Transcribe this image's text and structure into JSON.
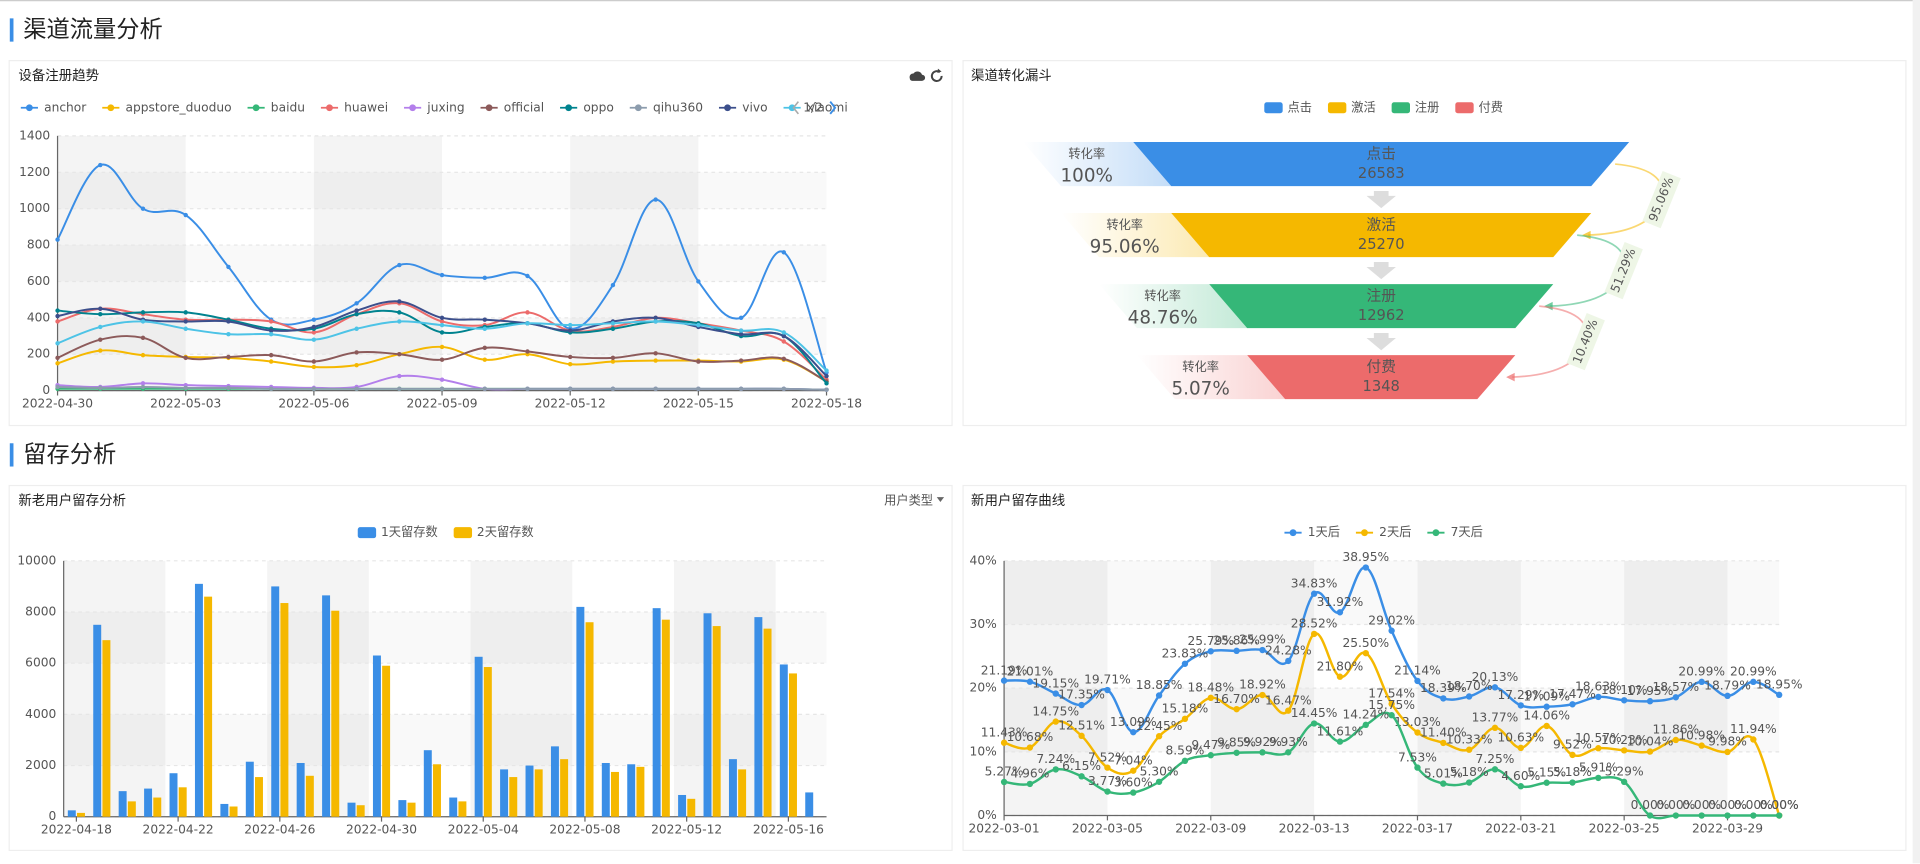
{
  "sections": [
    "渠道流量分析",
    "留存分析"
  ],
  "chart_data": [
    {
      "type": "line",
      "title": "设备注册趋势",
      "legend_page": "1/2",
      "smooth": true,
      "categories": [
        "2022-04-30",
        null,
        null,
        "2022-05-03",
        null,
        null,
        "2022-05-06",
        null,
        null,
        "2022-05-09",
        null,
        null,
        "2022-05-12",
        null,
        null,
        "2022-05-15",
        null,
        null,
        "2022-05-18"
      ],
      "ylim": [
        0,
        1400
      ],
      "yticks": [
        0,
        200,
        400,
        600,
        800,
        1000,
        1200,
        1400
      ],
      "series": [
        {
          "name": "anchor",
          "color": "#3a8ee6",
          "values": [
            830,
            1240,
            1000,
            965,
            680,
            390,
            390,
            480,
            690,
            635,
            620,
            630,
            340,
            580,
            1050,
            600,
            400,
            760,
            100
          ]
        },
        {
          "name": "appstore_duoduo",
          "color": "#f5b800",
          "values": [
            150,
            220,
            195,
            185,
            180,
            160,
            130,
            140,
            200,
            240,
            170,
            200,
            145,
            160,
            165,
            165,
            160,
            170,
            50
          ]
        },
        {
          "name": "baidu",
          "color": "#35b778",
          "values": [
            10,
            10,
            10,
            10,
            10,
            10,
            10,
            10,
            10,
            10,
            10,
            10,
            10,
            10,
            10,
            10,
            10,
            10,
            5
          ]
        },
        {
          "name": "huawei",
          "color": "#ec6b6b",
          "values": [
            380,
            450,
            420,
            390,
            390,
            380,
            320,
            420,
            480,
            380,
            360,
            430,
            330,
            350,
            400,
            370,
            330,
            270,
            60
          ]
        },
        {
          "name": "juxing",
          "color": "#b37feb",
          "values": [
            30,
            20,
            40,
            30,
            25,
            20,
            15,
            20,
            80,
            60,
            10,
            10,
            10,
            10,
            10,
            10,
            10,
            10,
            5
          ]
        },
        {
          "name": "official",
          "color": "#8c5a5a",
          "values": [
            180,
            280,
            290,
            180,
            185,
            195,
            160,
            210,
            200,
            170,
            235,
            215,
            185,
            180,
            205,
            160,
            165,
            175,
            50
          ]
        },
        {
          "name": "oppo",
          "color": "#00838f",
          "values": [
            440,
            420,
            430,
            430,
            390,
            340,
            340,
            420,
            430,
            320,
            350,
            370,
            320,
            340,
            380,
            370,
            300,
            300,
            40
          ]
        },
        {
          "name": "qihu360",
          "color": "#8c9cad",
          "values": [
            20,
            15,
            20,
            15,
            15,
            10,
            10,
            10,
            10,
            10,
            10,
            10,
            10,
            10,
            10,
            10,
            10,
            10,
            5
          ]
        },
        {
          "name": "vivo",
          "color": "#3c4f8c",
          "values": [
            410,
            450,
            390,
            380,
            380,
            330,
            350,
            440,
            490,
            400,
            390,
            370,
            330,
            380,
            400,
            350,
            310,
            300,
            80
          ]
        },
        {
          "name": "xiaomi",
          "color": "#4dc3e6",
          "values": [
            260,
            350,
            380,
            340,
            310,
            310,
            280,
            340,
            380,
            360,
            340,
            370,
            360,
            370,
            380,
            360,
            330,
            320,
            110
          ]
        }
      ]
    },
    {
      "type": "funnel",
      "title": "渠道转化漏斗",
      "rate_label": "转化率",
      "categories": [
        "点击",
        "激活",
        "注册",
        "付费"
      ],
      "colors": [
        "#3a8ee6",
        "#f5b800",
        "#35b778",
        "#ec6b6b"
      ],
      "values": [
        26583,
        25270,
        12962,
        1348
      ],
      "conversion_rates": [
        100,
        95.06,
        48.76,
        5.07
      ],
      "conversion_rate_labels": [
        "100%",
        "95.06%",
        "48.76%",
        "5.07%"
      ],
      "step_rates": [
        95.06,
        51.29,
        10.4
      ],
      "step_rate_labels": [
        "95.06%",
        "51.29%",
        "10.40%"
      ]
    },
    {
      "type": "bar",
      "title": "新老用户留存分析",
      "filter_label": "用户类型",
      "categories": [
        "2022-04-18",
        null,
        null,
        null,
        "2022-04-22",
        null,
        null,
        null,
        "2022-04-26",
        null,
        null,
        null,
        "2022-04-30",
        null,
        null,
        null,
        "2022-05-04",
        null,
        null,
        null,
        "2022-05-08",
        null,
        null,
        null,
        "2022-05-12",
        null,
        null,
        null,
        "2022-05-16",
        null
      ],
      "ylim": [
        0,
        10000
      ],
      "yticks": [
        0,
        2000,
        4000,
        6000,
        8000,
        10000
      ],
      "series": [
        {
          "name": "1天留存数",
          "color": "#3a8ee6",
          "values": [
            250,
            7500,
            1000,
            1100,
            1700,
            9100,
            500,
            2150,
            9000,
            2100,
            8650,
            550,
            6300,
            650,
            2600,
            750,
            6250,
            1850,
            2000,
            2750,
            8200,
            2100,
            2050,
            8150,
            850,
            7950,
            2250,
            7800,
            5950,
            950
          ]
        },
        {
          "name": "2天留存数",
          "color": "#f5b800",
          "values": [
            150,
            6900,
            600,
            750,
            1150,
            8600,
            400,
            1550,
            8350,
            1600,
            8050,
            450,
            5900,
            550,
            2050,
            600,
            5850,
            1550,
            1850,
            2250,
            7600,
            1750,
            1950,
            7700,
            700,
            7450,
            1850,
            7350,
            5600,
            null
          ]
        }
      ]
    },
    {
      "type": "line",
      "title": "新用户留存曲线",
      "smooth": true,
      "categories": [
        "2022-03-01",
        null,
        null,
        null,
        "2022-03-05",
        null,
        null,
        null,
        "2022-03-09",
        null,
        null,
        null,
        "2022-03-13",
        null,
        null,
        null,
        "2022-03-17",
        null,
        null,
        null,
        "2022-03-21",
        null,
        null,
        null,
        "2022-03-25",
        null,
        null,
        null,
        "2022-03-29",
        null,
        null
      ],
      "ylim": [
        0,
        40
      ],
      "yticks": [
        {
          "value": 0,
          "label": "0%"
        },
        {
          "value": 10,
          "label": "10%"
        },
        {
          "value": 20,
          "label": "20%"
        },
        {
          "value": 30,
          "label": "30%"
        },
        {
          "value": 40,
          "label": "40%"
        }
      ],
      "series": [
        {
          "name": "1天后",
          "color": "#3a8ee6",
          "values": [
            21.19,
            21.01,
            19.15,
            17.35,
            19.71,
            13.09,
            18.85,
            23.83,
            25.79,
            25.86,
            25.99,
            24.28,
            34.83,
            31.92,
            38.95,
            29.02,
            21.14,
            18.39,
            18.7,
            20.13,
            17.29,
            17.09,
            17.47,
            18.63,
            18.1,
            17.95,
            18.57,
            20.99,
            18.79,
            20.99,
            18.95
          ],
          "value_labels": [
            "21.19%",
            "21.01%",
            "19.15%",
            "17.35%",
            "19.71%",
            "13.09%",
            "18.85%",
            "23.83%",
            "25.79%",
            "25.86%",
            "25.99%",
            "24.28%",
            "34.83%",
            "31.92%",
            "38.95%",
            "29.02%",
            "21.14%",
            "18.39%",
            "18.70%",
            "20.13%",
            "17.29%",
            "17.09%",
            "17.47%",
            "18.63%",
            "18.10%",
            "17.95%",
            "18.57%",
            "20.99%",
            "18.79%",
            "20.99%",
            "18.95%"
          ]
        },
        {
          "name": "2天后",
          "color": "#f5b800",
          "values": [
            11.43,
            10.68,
            14.75,
            12.51,
            7.52,
            7.04,
            12.45,
            15.18,
            18.48,
            16.7,
            18.92,
            16.47,
            28.52,
            21.8,
            25.5,
            17.54,
            13.03,
            11.4,
            10.33,
            13.77,
            10.63,
            14.06,
            9.52,
            10.57,
            10.23,
            10.04,
            11.86,
            10.98,
            9.98,
            11.94,
            0
          ],
          "value_labels": [
            "11.43%",
            "10.68%",
            "14.75%",
            "12.51%",
            "7.52%",
            "7.04%",
            "12.45%",
            "15.18%",
            "18.48%",
            "16.70%",
            "18.92%",
            "16.47%",
            "28.52%",
            "21.80%",
            "25.50%",
            "17.54%",
            "13.03%",
            "11.40%",
            "10.33%",
            "13.77%",
            "10.63%",
            "14.06%",
            "9.52%",
            "10.57%",
            "10.23%",
            "10.04%",
            "11.86%",
            "10.98%",
            "9.98%",
            "11.94%",
            "0.00%"
          ]
        },
        {
          "name": "7天后",
          "color": "#35b778",
          "values": [
            5.27,
            4.96,
            7.24,
            6.15,
            3.77,
            3.6,
            5.3,
            8.59,
            9.47,
            9.85,
            9.92,
            9.93,
            14.45,
            11.61,
            14.24,
            15.75,
            7.53,
            5.01,
            5.18,
            7.25,
            4.6,
            5.15,
            5.18,
            5.91,
            5.29,
            0,
            0,
            0,
            0,
            0,
            0
          ],
          "value_labels": [
            "5.27%",
            "4.96%",
            "7.24%",
            "6.15%",
            "3.77%",
            "3.60%",
            "5.30%",
            "8.59%",
            "9.47%",
            "9.85%",
            "9.92%",
            "9.93%",
            "14.45%",
            "11.61%",
            "14.24%",
            "15.75%",
            "7.53%",
            "5.01%",
            "5.18%",
            "7.25%",
            "4.60%",
            "5.15%",
            "5.18%",
            "5.91%",
            "5.29%",
            "0.00%",
            "0.00%",
            "0.00%",
            "0.00%",
            "0.00%",
            "0.00%"
          ]
        }
      ]
    }
  ]
}
